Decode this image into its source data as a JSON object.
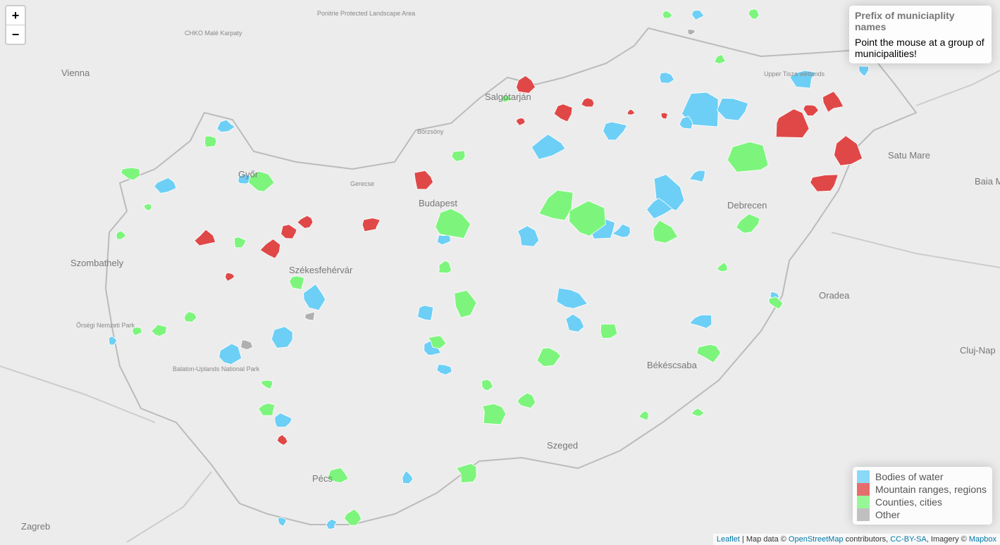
{
  "zoom": {
    "in": "+",
    "out": "−"
  },
  "info": {
    "title": "Prefix of municiaplity names",
    "text": "Point the mouse at a group of municipalities!"
  },
  "legend": {
    "items": [
      {
        "name": "Bodies of water",
        "color": "#6dcff6"
      },
      {
        "name": "Mountain ranges, regions",
        "color": "#e04848"
      },
      {
        "name": "Counties, cities",
        "color": "#7df57d"
      },
      {
        "name": "Other",
        "color": "#b0b0b0"
      }
    ]
  },
  "map_labels": [
    "Vienna",
    "CHKO Malé Karpaty",
    "Ponitrie Protected Landscape Area",
    "Salgótarján",
    "Börzsöny",
    "Győr",
    "Gerecse",
    "Budapest",
    "Szombathely",
    "Székesfehérvár",
    "Őrségi Nemzeti Park",
    "Balaton-Uplands National Park",
    "Debrecen",
    "Satu Mare",
    "Baia Ma",
    "Oradea",
    "Cluj-Nap",
    "Békéscsaba",
    "Szeged",
    "Pécs",
    "Zagreb",
    "Upper Tisza wetlands"
  ],
  "attribution": {
    "leaflet": "Leaflet",
    "text1": " | Map data © ",
    "osm": "OpenStreetMap",
    "text2": " contributors, ",
    "license": "CC-BY-SA",
    "text3": ", Imagery © ",
    "mapbox": "Mapbox"
  }
}
